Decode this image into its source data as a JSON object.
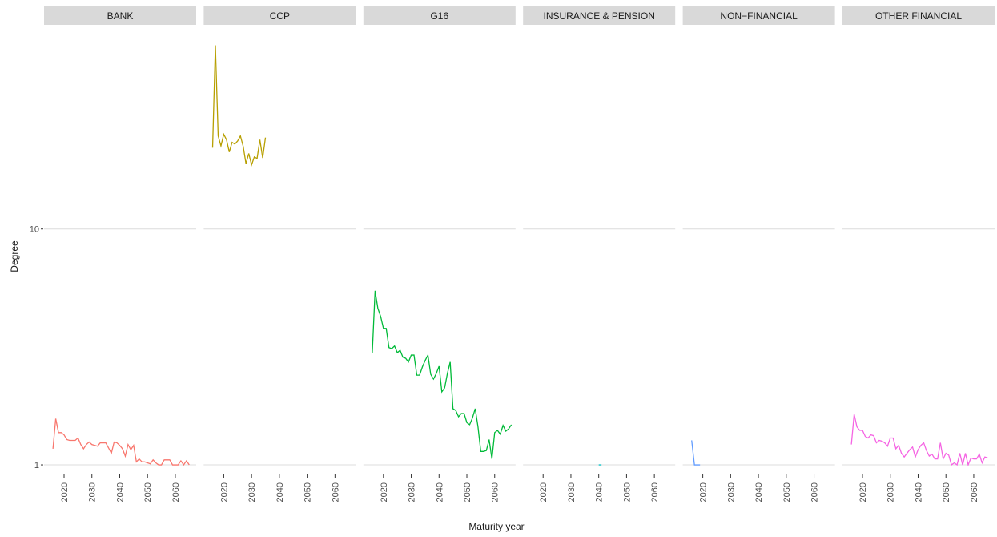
{
  "x_label": "Maturity year",
  "y_label": "Degree",
  "chart_data": [
    {
      "type": "line",
      "title": "BANK",
      "color": "#f8766d",
      "log_y": true,
      "xlim": [
        2012.8,
        2067.5
      ],
      "xticks": [
        2020,
        2030,
        2040,
        2050,
        2060
      ],
      "ylim": [
        0.925,
        70
      ],
      "yticks": [
        1,
        10
      ],
      "grid": true,
      "x": [
        2016,
        2017,
        2018,
        2019,
        2020,
        2021,
        2022,
        2023,
        2024,
        2025,
        2026,
        2027,
        2028,
        2029,
        2030,
        2031,
        2032,
        2033,
        2034,
        2035,
        2036,
        2037,
        2038,
        2039,
        2040,
        2041,
        2042,
        2043,
        2044,
        2045,
        2046,
        2047,
        2048,
        2049,
        2050,
        2051,
        2052,
        2053,
        2054,
        2055,
        2056,
        2057,
        2058,
        2059,
        2060,
        2061,
        2062,
        2063,
        2064,
        2065
      ],
      "values": [
        1.17,
        1.57,
        1.37,
        1.37,
        1.34,
        1.28,
        1.27,
        1.27,
        1.27,
        1.3,
        1.22,
        1.17,
        1.22,
        1.25,
        1.22,
        1.21,
        1.2,
        1.24,
        1.24,
        1.24,
        1.18,
        1.12,
        1.25,
        1.24,
        1.21,
        1.17,
        1.09,
        1.22,
        1.16,
        1.21,
        1.03,
        1.06,
        1.03,
        1.03,
        1.02,
        1.01,
        1.05,
        1.02,
        1,
        1,
        1.05,
        1.05,
        1.05,
        1,
        1,
        1,
        1.04,
        1,
        1.04,
        1
      ]
    },
    {
      "type": "line",
      "title": "CCP",
      "color": "#b79f00",
      "log_y": true,
      "xlim": [
        2012.8,
        2067.5
      ],
      "xticks": [
        2020,
        2030,
        2040,
        2050,
        2060
      ],
      "ylim": [
        0.925,
        70
      ],
      "yticks": [
        1,
        10
      ],
      "grid": true,
      "x": [
        2016,
        2017,
        2018,
        2019,
        2020,
        2021,
        2022,
        2023,
        2024,
        2025,
        2026,
        2027,
        2028,
        2029,
        2030,
        2031,
        2032,
        2033,
        2034,
        2035
      ],
      "values": [
        22.1,
        60.1,
        24.8,
        22.5,
        25.2,
        23.9,
        21.2,
        23.3,
        22.9,
        23.6,
        24.8,
        22.4,
        18.9,
        20.9,
        18.7,
        20.2,
        19.9,
        23.9,
        20.0,
        24.4
      ]
    },
    {
      "type": "line",
      "title": "G16",
      "color": "#00ba38",
      "log_y": true,
      "xlim": [
        2012.8,
        2067.5
      ],
      "xticks": [
        2020,
        2030,
        2040,
        2050,
        2060
      ],
      "ylim": [
        0.925,
        70
      ],
      "yticks": [
        1,
        10
      ],
      "grid": true,
      "x": [
        2016,
        2017,
        2018,
        2019,
        2020,
        2021,
        2022,
        2023,
        2024,
        2025,
        2026,
        2027,
        2028,
        2029,
        2030,
        2031,
        2032,
        2033,
        2034,
        2035,
        2036,
        2037,
        2038,
        2039,
        2040,
        2041,
        2042,
        2043,
        2044,
        2045,
        2046,
        2047,
        2048,
        2049,
        2050,
        2051,
        2052,
        2053,
        2054,
        2055,
        2056,
        2057,
        2058,
        2059,
        2060,
        2061,
        2062,
        2063,
        2064,
        2065,
        2066
      ],
      "values": [
        2.99,
        5.47,
        4.61,
        4.26,
        3.79,
        3.79,
        3.14,
        3.11,
        3.19,
        2.99,
        3.06,
        2.86,
        2.83,
        2.73,
        2.92,
        2.92,
        2.4,
        2.4,
        2.6,
        2.77,
        2.92,
        2.42,
        2.31,
        2.44,
        2.62,
        2.04,
        2.12,
        2.44,
        2.73,
        1.73,
        1.7,
        1.6,
        1.65,
        1.65,
        1.51,
        1.48,
        1.58,
        1.73,
        1.45,
        1.14,
        1.14,
        1.15,
        1.28,
        1.06,
        1.37,
        1.4,
        1.35,
        1.47,
        1.39,
        1.42,
        1.48
      ]
    },
    {
      "type": "line",
      "title": "INSURANCE & PENSION",
      "color": "#00bfc4",
      "log_y": true,
      "xlim": [
        2012.8,
        2067.5
      ],
      "xticks": [
        2020,
        2030,
        2040,
        2050,
        2060
      ],
      "ylim": [
        0.925,
        70
      ],
      "yticks": [
        1,
        10
      ],
      "grid": true,
      "x": [
        2040,
        2041
      ],
      "values": [
        1,
        1
      ]
    },
    {
      "type": "line",
      "title": "NON−FINANCIAL",
      "color": "#619cff",
      "log_y": true,
      "xlim": [
        2012.8,
        2067.5
      ],
      "xticks": [
        2020,
        2030,
        2040,
        2050,
        2060
      ],
      "ylim": [
        0.925,
        70
      ],
      "yticks": [
        1,
        10
      ],
      "grid": true,
      "x": [
        2016,
        2017,
        2018,
        2019
      ],
      "values": [
        1.27,
        1,
        1,
        1
      ]
    },
    {
      "type": "line",
      "title": "OTHER FINANCIAL",
      "color": "#f564e3",
      "log_y": true,
      "xlim": [
        2012.8,
        2067.5
      ],
      "xticks": [
        2020,
        2030,
        2040,
        2050,
        2060
      ],
      "ylim": [
        0.925,
        70
      ],
      "yticks": [
        1,
        10
      ],
      "grid": true,
      "x": [
        2016,
        2017,
        2018,
        2019,
        2020,
        2021,
        2022,
        2023,
        2024,
        2025,
        2026,
        2027,
        2028,
        2029,
        2030,
        2031,
        2032,
        2033,
        2034,
        2035,
        2036,
        2037,
        2038,
        2039,
        2040,
        2041,
        2042,
        2043,
        2044,
        2045,
        2046,
        2047,
        2048,
        2049,
        2050,
        2051,
        2052,
        2053,
        2054,
        2055,
        2056,
        2057,
        2058,
        2059,
        2060,
        2061,
        2062,
        2063,
        2064,
        2065
      ],
      "values": [
        1.22,
        1.64,
        1.45,
        1.4,
        1.4,
        1.32,
        1.3,
        1.34,
        1.33,
        1.24,
        1.27,
        1.26,
        1.24,
        1.2,
        1.3,
        1.3,
        1.17,
        1.21,
        1.12,
        1.08,
        1.12,
        1.16,
        1.19,
        1.08,
        1.16,
        1.21,
        1.24,
        1.15,
        1.09,
        1.11,
        1.06,
        1.06,
        1.24,
        1.06,
        1.12,
        1.1,
        1,
        1.02,
        1,
        1.12,
        1,
        1.12,
        1,
        1.07,
        1.06,
        1.06,
        1.11,
        1.02,
        1.08,
        1.07
      ]
    }
  ]
}
